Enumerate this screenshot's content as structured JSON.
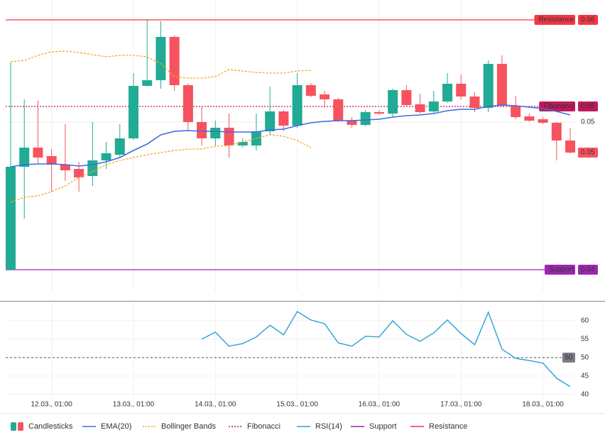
{
  "chart_data": [
    {
      "type": "candlestick",
      "categories": [
        null,
        null,
        null,
        "12.03., 01:00",
        null,
        null,
        null,
        null,
        null,
        "13.03., 01:00",
        null,
        null,
        null,
        null,
        null,
        "14.03., 01:00",
        null,
        null,
        null,
        null,
        null,
        "15.03., 01:00",
        null,
        null,
        null,
        null,
        null,
        "16.03., 01:00",
        null,
        null,
        null,
        null,
        null,
        "17.03., 01:00",
        null,
        null,
        null,
        null,
        null,
        "18.03., 01:00",
        null,
        null
      ],
      "series": [
        {
          "name": "Candlesticks",
          "type": "candlestick",
          "up_color": "#22ab94",
          "down_color": "#f7525f",
          "open": [
            0.0424,
            0.04965,
            0.051,
            0.0504,
            0.0498,
            0.0495,
            0.049,
            0.0501,
            0.0505,
            0.05165,
            0.05535,
            0.05575,
            0.0588,
            0.0554,
            0.0528,
            0.05165,
            0.0524,
            0.05115,
            0.05115,
            0.05215,
            0.05355,
            0.05255,
            0.0554,
            0.05475,
            0.0544,
            0.0529,
            0.0526,
            0.0535,
            0.0534,
            0.05505,
            0.05405,
            0.05355,
            0.05425,
            0.0555,
            0.0546,
            0.0538,
            0.0569,
            0.0539,
            0.0532,
            0.053,
            0.05275,
            0.0515
          ],
          "high": [
            0.057,
            0.0544,
            0.0543,
            0.0509,
            0.05265,
            0.05,
            0.0528,
            0.0514,
            0.05265,
            0.05625,
            0.06,
            0.0599,
            0.0589,
            0.0555,
            0.0539,
            0.0529,
            0.0534,
            0.05165,
            0.0534,
            0.0553,
            0.05365,
            0.05625,
            0.05555,
            0.055,
            0.0545,
            0.05315,
            0.05365,
            0.05365,
            0.05515,
            0.0554,
            0.0548,
            0.055,
            0.05625,
            0.05615,
            0.0549,
            0.05715,
            0.0575,
            0.05465,
            0.0534,
            0.05315,
            0.0528,
            0.0524
          ],
          "low": [
            0.0424,
            0.046,
            0.0499,
            0.0479,
            0.04865,
            0.0479,
            0.0483,
            0.0495,
            0.0503,
            0.05155,
            0.0553,
            0.05515,
            0.055,
            0.05215,
            0.05115,
            0.05115,
            0.0503,
            0.051,
            0.0508,
            0.0519,
            0.05215,
            0.0524,
            0.05455,
            0.0538,
            0.0528,
            0.0524,
            0.0525,
            0.0533,
            0.05315,
            0.0539,
            0.0534,
            0.0534,
            0.05415,
            0.0544,
            0.0535,
            0.0535,
            0.0539,
            0.053,
            0.0528,
            0.05265,
            0.0501,
            0.0506
          ],
          "close": [
            0.04965,
            0.051,
            0.0503,
            0.0498,
            0.0494,
            0.0489,
            0.0501,
            0.0506,
            0.05165,
            0.05535,
            0.05575,
            0.0588,
            0.0554,
            0.0528,
            0.05165,
            0.0524,
            0.05115,
            0.0514,
            0.05215,
            0.05355,
            0.05255,
            0.0554,
            0.05465,
            0.0544,
            0.0529,
            0.0526,
            0.0535,
            0.0534,
            0.05505,
            0.054,
            0.0535,
            0.05425,
            0.0555,
            0.0546,
            0.0538,
            0.0569,
            0.054,
            0.05315,
            0.0529,
            0.05275,
            0.0515,
            0.05065
          ]
        },
        {
          "name": "EMA(20)",
          "type": "line",
          "color": "#3d6be0",
          "values": [
            0.04965,
            0.0498,
            0.04985,
            0.04985,
            0.0498,
            0.0497,
            0.0498,
            0.05,
            0.0503,
            0.0508,
            0.05125,
            0.0519,
            0.05215,
            0.0522,
            0.05215,
            0.05215,
            0.0521,
            0.0521,
            0.0521,
            0.05225,
            0.0523,
            0.05255,
            0.05275,
            0.05285,
            0.0529,
            0.0529,
            0.05295,
            0.053,
            0.05315,
            0.05325,
            0.0533,
            0.0534,
            0.0536,
            0.0537,
            0.0537,
            0.0539,
            0.054,
            0.05395,
            0.05385,
            0.05375,
            0.05355,
            0.0533
          ]
        },
        {
          "name": "Bollinger Bands",
          "type": "band",
          "color": "#f5a623",
          "upper": [
            0.05705,
            0.05715,
            0.0575,
            0.05775,
            0.0578,
            0.0577,
            0.05755,
            0.0574,
            0.0575,
            0.0575,
            0.0574,
            0.0569,
            0.056,
            0.0559,
            0.0559,
            0.056,
            0.0565,
            0.0564,
            0.0563,
            0.05625,
            0.05625,
            0.0564,
            0.05645,
            null,
            null,
            null,
            null,
            null,
            null,
            null,
            null,
            null,
            null,
            null,
            null,
            null,
            null,
            null,
            null,
            null,
            null,
            null
          ],
          "lower": [
            0.04715,
            0.0475,
            0.0476,
            0.0479,
            0.0483,
            0.0489,
            0.0493,
            0.0498,
            0.0501,
            0.0503,
            0.0505,
            0.05065,
            0.0508,
            0.0509,
            0.0509,
            0.0511,
            0.05115,
            0.0514,
            0.05165,
            0.0519,
            0.0518,
            0.0515,
            0.051,
            null,
            null,
            null,
            null,
            null,
            null,
            null,
            null,
            null,
            null,
            null,
            null,
            null,
            null,
            null,
            null,
            null,
            null,
            null
          ]
        }
      ],
      "levels": [
        {
          "name": "Resistance",
          "value": 0.06,
          "label": "0.06",
          "color": "#f23645",
          "style": "solid"
        },
        {
          "name": "Fibonacci",
          "value": 0.0539,
          "label": "0.05",
          "color": "#c2185b",
          "style": "dotted"
        },
        {
          "name": "Support",
          "value": 0.0424,
          "label": "0.04",
          "color": "#9c27b0",
          "style": "solid"
        }
      ],
      "last_price_label": "0.05",
      "ylim": [
        0.0409,
        0.0614
      ],
      "yticks": [
        {
          "value": 0.0528,
          "label": "0.05"
        }
      ],
      "grid": true
    },
    {
      "type": "line",
      "series": [
        {
          "name": "RSI(14)",
          "color": "#2aa0d8",
          "values": [
            null,
            null,
            null,
            null,
            null,
            null,
            null,
            null,
            null,
            null,
            null,
            null,
            null,
            null,
            55,
            56.9,
            53.1,
            53.8,
            55.6,
            58.8,
            56.2,
            62.5,
            60.2,
            59.2,
            54,
            53.1,
            55.8,
            55.6,
            60,
            56.3,
            54.4,
            56.7,
            60.2,
            56.5,
            53.5,
            62.3,
            52.3,
            49.8,
            49.2,
            48.5,
            44.4,
            42.1
          ]
        }
      ],
      "level": 50,
      "ylim": [
        38.8,
        65.2
      ],
      "yticks": [
        40,
        45,
        50,
        55,
        60
      ],
      "grid": true
    }
  ]
}
